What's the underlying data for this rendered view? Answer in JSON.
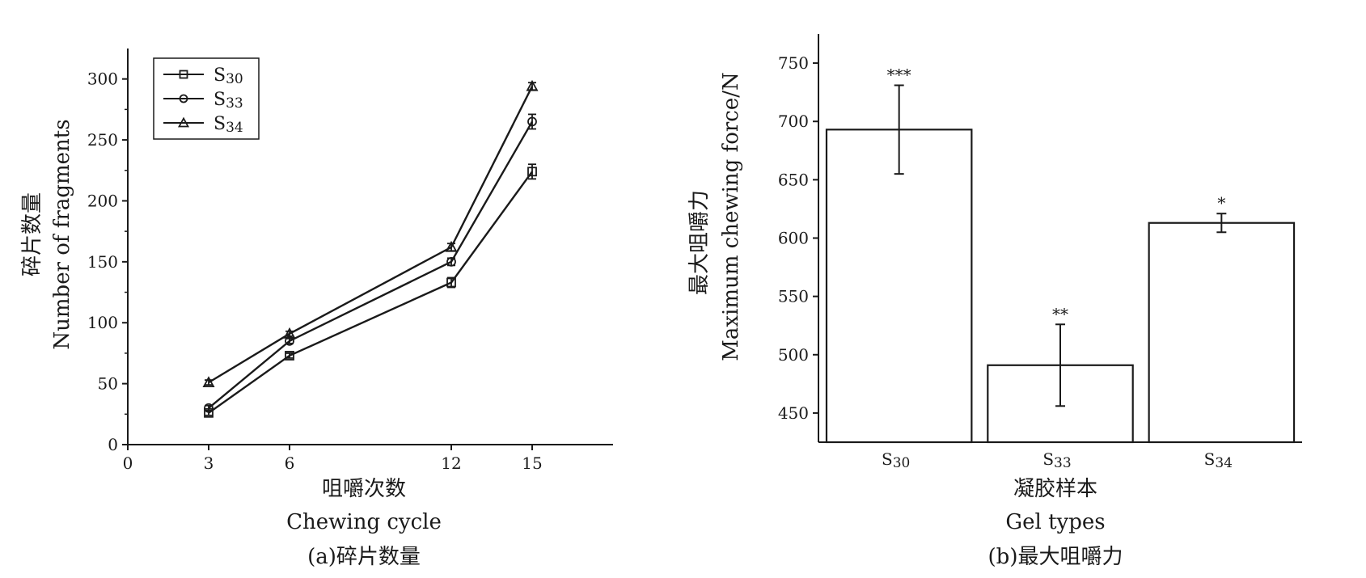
{
  "chart_data": [
    {
      "type": "line",
      "x_axis_label_cn": "咀嚼次数",
      "x_axis_label_en": "Chewing cycle",
      "y_axis_label_cn": "碎片数量",
      "y_axis_label_en": "Number of fragments",
      "caption": "(a)碎片数量",
      "x_ticks": [
        "0",
        "3",
        "6",
        "12",
        "15"
      ],
      "x_tick_values": [
        0,
        3,
        6,
        12,
        15
      ],
      "y_ticks": [
        "0",
        "50",
        "100",
        "150",
        "200",
        "250",
        "300"
      ],
      "y_tick_values": [
        0,
        50,
        100,
        150,
        200,
        250,
        300
      ],
      "xlim": [
        0,
        18
      ],
      "ylim": [
        0,
        325
      ],
      "x": [
        3,
        6,
        12,
        15
      ],
      "series": [
        {
          "name": "S",
          "subscript": "30",
          "marker": "square",
          "values": [
            26,
            73,
            133,
            224
          ],
          "errors": [
            2,
            2,
            4,
            6
          ]
        },
        {
          "name": "S",
          "subscript": "33",
          "marker": "circle",
          "values": [
            30,
            85,
            150,
            265
          ],
          "errors": [
            2,
            2,
            3,
            6
          ]
        },
        {
          "name": "S",
          "subscript": "34",
          "marker": "triangle",
          "values": [
            51,
            91,
            162,
            294
          ],
          "errors": [
            2,
            2,
            3,
            3
          ]
        }
      ],
      "legend_position": "top-left",
      "grid": false
    },
    {
      "type": "bar",
      "x_axis_label_cn": "凝胶样本",
      "x_axis_label_en": "Gel types",
      "y_axis_label_cn": "最大咀嚼力",
      "y_axis_label_en": "Maximum chewing force/N",
      "caption": "(b)最大咀嚼力",
      "y_ticks": [
        "450",
        "500",
        "550",
        "600",
        "650",
        "700",
        "750"
      ],
      "y_tick_values": [
        450,
        500,
        550,
        600,
        650,
        700,
        750
      ],
      "ylim": [
        425,
        775
      ],
      "categories": [
        {
          "name": "S",
          "subscript": "30"
        },
        {
          "name": "S",
          "subscript": "33"
        },
        {
          "name": "S",
          "subscript": "34"
        }
      ],
      "values": [
        693,
        491,
        613
      ],
      "errors": [
        38,
        35,
        8
      ],
      "significance": [
        "***",
        "**",
        "*"
      ],
      "grid": false
    }
  ]
}
